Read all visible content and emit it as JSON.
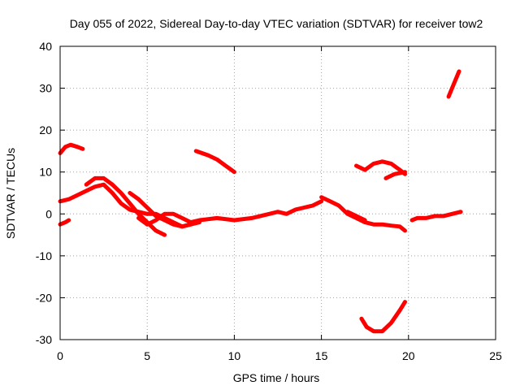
{
  "chart_data": {
    "type": "line",
    "title": "Day 055 of 2022, Sidereal Day-to-day VTEC variation (SDTVAR) for receiver tow2",
    "xlabel": "GPS time / hours",
    "ylabel": "SDTVAR / TECUs",
    "xlim": [
      0,
      25
    ],
    "ylim": [
      -30,
      40
    ],
    "xticks": [
      "0",
      "5",
      "10",
      "15",
      "20",
      "25"
    ],
    "yticks": [
      "-30",
      "-20",
      "-10",
      "0",
      "10",
      "20",
      "30",
      "40"
    ],
    "xtick_values": [
      0,
      5,
      10,
      15,
      20,
      25
    ],
    "ytick_values": [
      -30,
      -20,
      -10,
      0,
      10,
      20,
      30,
      40
    ],
    "grid": true,
    "series_color": "#ff0000",
    "series": [
      {
        "name": "s1",
        "x": [
          0,
          0.3,
          0.6,
          1.0,
          1.3
        ],
        "y": [
          14.5,
          16,
          16.5,
          16,
          15.5
        ]
      },
      {
        "name": "s2",
        "x": [
          0,
          0.3,
          0.5
        ],
        "y": [
          -2.5,
          -2,
          -1.5
        ]
      },
      {
        "name": "s3",
        "x": [
          0,
          0.5,
          1.0,
          1.5,
          2.0,
          2.5,
          3.0,
          3.5,
          4.0,
          4.5,
          5.0,
          5.5,
          6.0,
          6.5,
          7.0,
          7.5,
          8.0
        ],
        "y": [
          3,
          3.5,
          4.5,
          5.5,
          6.5,
          7,
          5,
          2.5,
          1,
          0.5,
          0,
          0,
          -1,
          -2,
          -3,
          -2.5,
          -2
        ]
      },
      {
        "name": "s4",
        "x": [
          1.5,
          2.0,
          2.5,
          3.0,
          3.5,
          4.0,
          4.5,
          5.0,
          5.5,
          6.0
        ],
        "y": [
          7,
          8.5,
          8.5,
          7,
          5,
          2.5,
          0,
          -2,
          -4,
          -5
        ]
      },
      {
        "name": "s5",
        "x": [
          4.0,
          4.5,
          5.0,
          5.5,
          6.0,
          6.5,
          7.0,
          7.5
        ],
        "y": [
          5,
          3.5,
          1.5,
          -0.5,
          -1.5,
          -2.5,
          -3,
          -2.5
        ]
      },
      {
        "name": "s6",
        "x": [
          4.5,
          5.0,
          5.5,
          6.0,
          6.5,
          7.0,
          7.5
        ],
        "y": [
          -1,
          -2.5,
          -1.5,
          0,
          0,
          -1,
          -2
        ]
      },
      {
        "name": "s7",
        "x": [
          7.5,
          8.0,
          9.0,
          10.0,
          11.0,
          12.0,
          12.5,
          13.0,
          13.5,
          14.0,
          14.5,
          15.0
        ],
        "y": [
          -2,
          -1.5,
          -1,
          -1.5,
          -1,
          0,
          0.5,
          0,
          1,
          1.5,
          2,
          3
        ]
      },
      {
        "name": "s8",
        "x": [
          7.8,
          8.5,
          9.0,
          9.5,
          10.0
        ],
        "y": [
          15,
          14,
          13,
          11.5,
          10
        ]
      },
      {
        "name": "s9",
        "x": [
          15,
          15.5,
          16,
          16.5,
          17,
          17.5,
          18,
          18.5,
          19,
          19.5,
          19.8
        ],
        "y": [
          4,
          3,
          2,
          0,
          -1,
          -2,
          -2.5,
          -2.5,
          -2.8,
          -3,
          -4
        ]
      },
      {
        "name": "s10",
        "x": [
          16.5,
          17.0,
          17.5
        ],
        "y": [
          0.5,
          -0.5,
          -1.5
        ]
      },
      {
        "name": "s11",
        "x": [
          17,
          17.5,
          18,
          18.5,
          19,
          19.5,
          19.8
        ],
        "y": [
          11.5,
          10.5,
          12,
          12.5,
          12,
          10.5,
          9.5
        ]
      },
      {
        "name": "s12",
        "x": [
          18.7,
          19.2,
          19.8
        ],
        "y": [
          8.5,
          9.5,
          10
        ]
      },
      {
        "name": "s13",
        "x": [
          17.3,
          17.6,
          18,
          18.5,
          19,
          19.5,
          19.8
        ],
        "y": [
          -25,
          -27,
          -28,
          -28,
          -26,
          -23,
          -21
        ]
      },
      {
        "name": "s14",
        "x": [
          20.2,
          20.5,
          21,
          21.5,
          22,
          22.5,
          23
        ],
        "y": [
          -1.5,
          -1,
          -1,
          -0.5,
          -0.5,
          0,
          0.5
        ]
      },
      {
        "name": "s15",
        "x": [
          22.3,
          22.6,
          22.9
        ],
        "y": [
          28,
          31,
          34
        ]
      }
    ]
  }
}
